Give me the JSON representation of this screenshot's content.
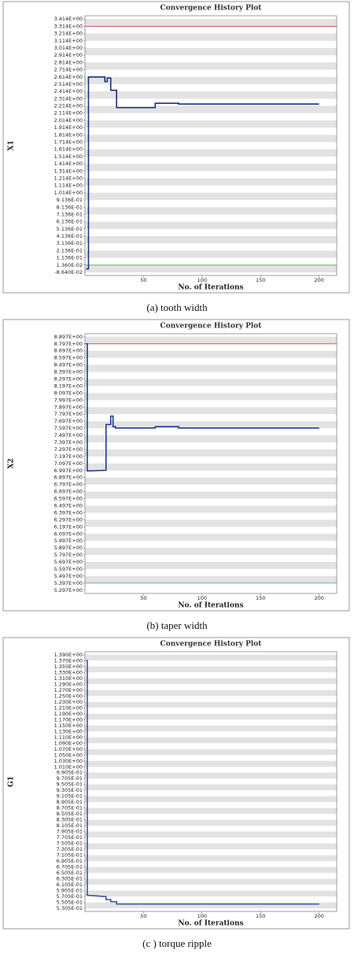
{
  "chart_data": [
    {
      "type": "line",
      "title": "Convergence History Plot",
      "xlabel": "No. of Iterations",
      "ylabel": "X1",
      "caption": "(a)  tooth width",
      "xlim": [
        0,
        215
      ],
      "xticks": [
        50,
        100,
        150,
        200
      ],
      "ylim": [
        -0.13,
        3.46
      ],
      "yticks": [
        {
          "value": 3.414,
          "label": "3.414E+00"
        },
        {
          "value": 3.314,
          "label": "3.314E+00"
        },
        {
          "value": 3.214,
          "label": "3.214E+00"
        },
        {
          "value": 3.114,
          "label": "3.114E+00"
        },
        {
          "value": 3.014,
          "label": "3.014E+00"
        },
        {
          "value": 2.914,
          "label": "2.914E+00"
        },
        {
          "value": 2.814,
          "label": "2.814E+00"
        },
        {
          "value": 2.714,
          "label": "2.714E+00"
        },
        {
          "value": 2.614,
          "label": "2.614E+00"
        },
        {
          "value": 2.514,
          "label": "2.514E+00"
        },
        {
          "value": 2.414,
          "label": "2.414E+00"
        },
        {
          "value": 2.314,
          "label": "2.314E+00"
        },
        {
          "value": 2.214,
          "label": "2.214E+00"
        },
        {
          "value": 2.114,
          "label": "2.114E+00"
        },
        {
          "value": 2.014,
          "label": "2.014E+00"
        },
        {
          "value": 1.914,
          "label": "1.914E+00"
        },
        {
          "value": 1.814,
          "label": "1.814E+00"
        },
        {
          "value": 1.714,
          "label": "1.714E+00"
        },
        {
          "value": 1.614,
          "label": "1.614E+00"
        },
        {
          "value": 1.514,
          "label": "1.514E+00"
        },
        {
          "value": 1.414,
          "label": "1.414E+00"
        },
        {
          "value": 1.314,
          "label": "1.314E+00"
        },
        {
          "value": 1.214,
          "label": "1.214E+00"
        },
        {
          "value": 1.114,
          "label": "1.114E+00"
        },
        {
          "value": 1.014,
          "label": "1.014E+00"
        },
        {
          "value": 0.9136,
          "label": "9.136E-01"
        },
        {
          "value": 0.8136,
          "label": "8.136E-01"
        },
        {
          "value": 0.7136,
          "label": "7.136E-01"
        },
        {
          "value": 0.6136,
          "label": "6.136E-01"
        },
        {
          "value": 0.5136,
          "label": "5.136E-01"
        },
        {
          "value": 0.4136,
          "label": "4.136E-01"
        },
        {
          "value": 0.3136,
          "label": "3.136E-01"
        },
        {
          "value": 0.2136,
          "label": "2.136E-01"
        },
        {
          "value": 0.1136,
          "label": "1.136E-01"
        },
        {
          "value": 0.0136,
          "label": "1.360E-02"
        },
        {
          "value": -0.0864,
          "label": "-8.640E-02"
        }
      ],
      "upper_bound": 3.314,
      "lower_bound": 0.0136,
      "upper_color": "#d04040",
      "lower_color": "#40b040",
      "series": [
        {
          "color": "#1a2f80",
          "x": [
            1,
            3,
            3,
            17,
            17,
            19,
            19,
            22,
            22,
            27,
            27,
            60,
            60,
            80,
            80,
            200
          ],
          "values": [
            -0.04,
            -0.04,
            2.614,
            2.614,
            2.55,
            2.55,
            2.6,
            2.6,
            2.43,
            2.43,
            2.19,
            2.19,
            2.25,
            2.25,
            2.24,
            2.24
          ]
        }
      ]
    },
    {
      "type": "line",
      "title": "Convergence History Plot",
      "xlabel": "No. of Iterations",
      "ylabel": "X2",
      "caption": "(b)  taper width",
      "xlim": [
        0,
        215
      ],
      "xticks": [
        50,
        100,
        150,
        200
      ],
      "ylim": [
        5.25,
        8.94
      ],
      "yticks": [
        {
          "value": 8.897,
          "label": "8.897E+00"
        },
        {
          "value": 8.797,
          "label": "8.797E+00"
        },
        {
          "value": 8.697,
          "label": "8.697E+00"
        },
        {
          "value": 8.597,
          "label": "8.597E+00"
        },
        {
          "value": 8.497,
          "label": "8.497E+00"
        },
        {
          "value": 8.397,
          "label": "8.397E+00"
        },
        {
          "value": 8.297,
          "label": "8.297E+00"
        },
        {
          "value": 8.197,
          "label": "8.197E+00"
        },
        {
          "value": 8.097,
          "label": "8.097E+00"
        },
        {
          "value": 7.997,
          "label": "7.997E+00"
        },
        {
          "value": 7.897,
          "label": "7.897E+00"
        },
        {
          "value": 7.797,
          "label": "7.797E+00"
        },
        {
          "value": 7.697,
          "label": "7.697E+00"
        },
        {
          "value": 7.597,
          "label": "7.597E+00"
        },
        {
          "value": 7.497,
          "label": "7.497E+00"
        },
        {
          "value": 7.397,
          "label": "7.397E+00"
        },
        {
          "value": 7.297,
          "label": "7.297E+00"
        },
        {
          "value": 7.197,
          "label": "7.197E+00"
        },
        {
          "value": 7.097,
          "label": "7.097E+00"
        },
        {
          "value": 6.997,
          "label": "6.997E+00"
        },
        {
          "value": 6.897,
          "label": "6.897E+00"
        },
        {
          "value": 6.797,
          "label": "6.797E+00"
        },
        {
          "value": 6.697,
          "label": "6.697E+00"
        },
        {
          "value": 6.597,
          "label": "6.597E+00"
        },
        {
          "value": 6.497,
          "label": "6.497E+00"
        },
        {
          "value": 6.397,
          "label": "6.397E+00"
        },
        {
          "value": 6.297,
          "label": "6.297E+00"
        },
        {
          "value": 6.197,
          "label": "6.197E+00"
        },
        {
          "value": 6.097,
          "label": "6.097E+00"
        },
        {
          "value": 5.997,
          "label": "5.997E+00"
        },
        {
          "value": 5.897,
          "label": "5.897E+00"
        },
        {
          "value": 5.797,
          "label": "5.797E+00"
        },
        {
          "value": 5.697,
          "label": "5.697E+00"
        },
        {
          "value": 5.597,
          "label": "5.597E+00"
        },
        {
          "value": 5.497,
          "label": "5.497E+00"
        },
        {
          "value": 5.397,
          "label": "5.397E+00"
        },
        {
          "value": 5.297,
          "label": "5.297E+00"
        }
      ],
      "upper_bound": 8.797,
      "lower_bound": 5.397,
      "upper_color": "#d04040",
      "lower_color": "#40b040",
      "series": [
        {
          "color": "#1a3a9a",
          "x": [
            1,
            2,
            2,
            18,
            18,
            22,
            22,
            24,
            24,
            26,
            26,
            60,
            60,
            80,
            80,
            200
          ],
          "values": [
            8.797,
            8.797,
            6.99,
            7.0,
            7.65,
            7.65,
            7.77,
            7.77,
            7.62,
            7.62,
            7.6,
            7.6,
            7.62,
            7.62,
            7.6,
            7.6
          ]
        }
      ]
    },
    {
      "type": "line",
      "title": "Convergence History Plot",
      "xlabel": "No. of Iterations",
      "ylabel": "G1",
      "caption": "(c  )  torque ripple",
      "xlim": [
        0,
        215
      ],
      "xticks": [
        50,
        100,
        150,
        200
      ],
      "ylim": [
        0.52,
        1.4
      ],
      "yticks": [
        {
          "value": 1.39,
          "label": "1.390E+00"
        },
        {
          "value": 1.37,
          "label": "1.370E+00"
        },
        {
          "value": 1.35,
          "label": "1.350E+00"
        },
        {
          "value": 1.33,
          "label": "1.330E+00"
        },
        {
          "value": 1.31,
          "label": "1.310E+00"
        },
        {
          "value": 1.29,
          "label": "1.290E+00"
        },
        {
          "value": 1.27,
          "label": "1.270E+00"
        },
        {
          "value": 1.25,
          "label": "1.250E+00"
        },
        {
          "value": 1.23,
          "label": "1.230E+00"
        },
        {
          "value": 1.21,
          "label": "1.210E+00"
        },
        {
          "value": 1.19,
          "label": "1.190E+00"
        },
        {
          "value": 1.17,
          "label": "1.170E+00"
        },
        {
          "value": 1.15,
          "label": "1.150E+00"
        },
        {
          "value": 1.13,
          "label": "1.130E+00"
        },
        {
          "value": 1.11,
          "label": "1.110E+00"
        },
        {
          "value": 1.09,
          "label": "1.090E+00"
        },
        {
          "value": 1.07,
          "label": "1.070E+00"
        },
        {
          "value": 1.05,
          "label": "1.050E+00"
        },
        {
          "value": 1.03,
          "label": "1.030E+00"
        },
        {
          "value": 1.01,
          "label": "1.010E+00"
        },
        {
          "value": 0.9905,
          "label": "9.905E-01"
        },
        {
          "value": 0.9705,
          "label": "9.705E-01"
        },
        {
          "value": 0.9505,
          "label": "9.505E-01"
        },
        {
          "value": 0.9305,
          "label": "9.305E-01"
        },
        {
          "value": 0.9105,
          "label": "9.105E-01"
        },
        {
          "value": 0.8905,
          "label": "8.905E-01"
        },
        {
          "value": 0.8705,
          "label": "8.705E-01"
        },
        {
          "value": 0.8505,
          "label": "8.505E-01"
        },
        {
          "value": 0.8305,
          "label": "8.305E-01"
        },
        {
          "value": 0.8105,
          "label": "8.105E-01"
        },
        {
          "value": 0.7905,
          "label": "7.905E-01"
        },
        {
          "value": 0.7705,
          "label": "7.705E-01"
        },
        {
          "value": 0.7505,
          "label": "7.505E-01"
        },
        {
          "value": 0.7305,
          "label": "7.305E-01"
        },
        {
          "value": 0.7105,
          "label": "7.105E-01"
        },
        {
          "value": 0.6905,
          "label": "6.905E-01"
        },
        {
          "value": 0.6705,
          "label": "6.705E-01"
        },
        {
          "value": 0.6505,
          "label": "6.505E-01"
        },
        {
          "value": 0.6305,
          "label": "6.305E-01"
        },
        {
          "value": 0.6105,
          "label": "6.105E-01"
        },
        {
          "value": 0.5905,
          "label": "5.905E-01"
        },
        {
          "value": 0.5705,
          "label": "5.705E-01"
        },
        {
          "value": 0.5505,
          "label": "5.505E-01"
        },
        {
          "value": 0.5305,
          "label": "5.305E-01"
        }
      ],
      "series": [
        {
          "color": "#3550b8",
          "x": [
            1,
            2,
            2,
            18,
            18,
            22,
            22,
            27,
            27,
            200
          ],
          "values": [
            1.37,
            1.37,
            0.575,
            0.57,
            0.56,
            0.56,
            0.553,
            0.553,
            0.545,
            0.545
          ]
        }
      ]
    }
  ]
}
